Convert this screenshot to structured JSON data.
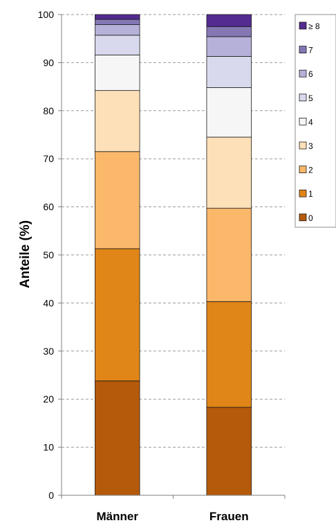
{
  "chart_data": {
    "type": "bar",
    "stacked": true,
    "percent": true,
    "title": "",
    "xlabel": "",
    "ylabel": "Anteile (%)",
    "ylim": [
      0,
      100
    ],
    "yticks": [
      0,
      10,
      20,
      30,
      40,
      50,
      60,
      70,
      80,
      90,
      100
    ],
    "grid": true,
    "legend_position": "right",
    "categories": [
      "Männer",
      "Frauen"
    ],
    "series": [
      {
        "name": "0",
        "color": "#b45a0a",
        "values": [
          23.8,
          18.3
        ]
      },
      {
        "name": "1",
        "color": "#e08518",
        "values": [
          27.5,
          22.0
        ]
      },
      {
        "name": "2",
        "color": "#fbb86b",
        "values": [
          20.2,
          19.4
        ]
      },
      {
        "name": "3",
        "color": "#fde0b7",
        "values": [
          12.7,
          14.8
        ]
      },
      {
        "name": "4",
        "color": "#f6f6f6",
        "values": [
          7.4,
          10.3
        ]
      },
      {
        "name": "5",
        "color": "#d9d9ee",
        "values": [
          4.1,
          6.5
        ]
      },
      {
        "name": "6",
        "color": "#b6b1d9",
        "values": [
          2.2,
          4.1
        ]
      },
      {
        "name": "7",
        "color": "#8577b4",
        "values": [
          1.1,
          2.1
        ]
      },
      {
        "name": "≥ 8",
        "color": "#542b91",
        "values": [
          1.0,
          2.5
        ]
      }
    ]
  }
}
